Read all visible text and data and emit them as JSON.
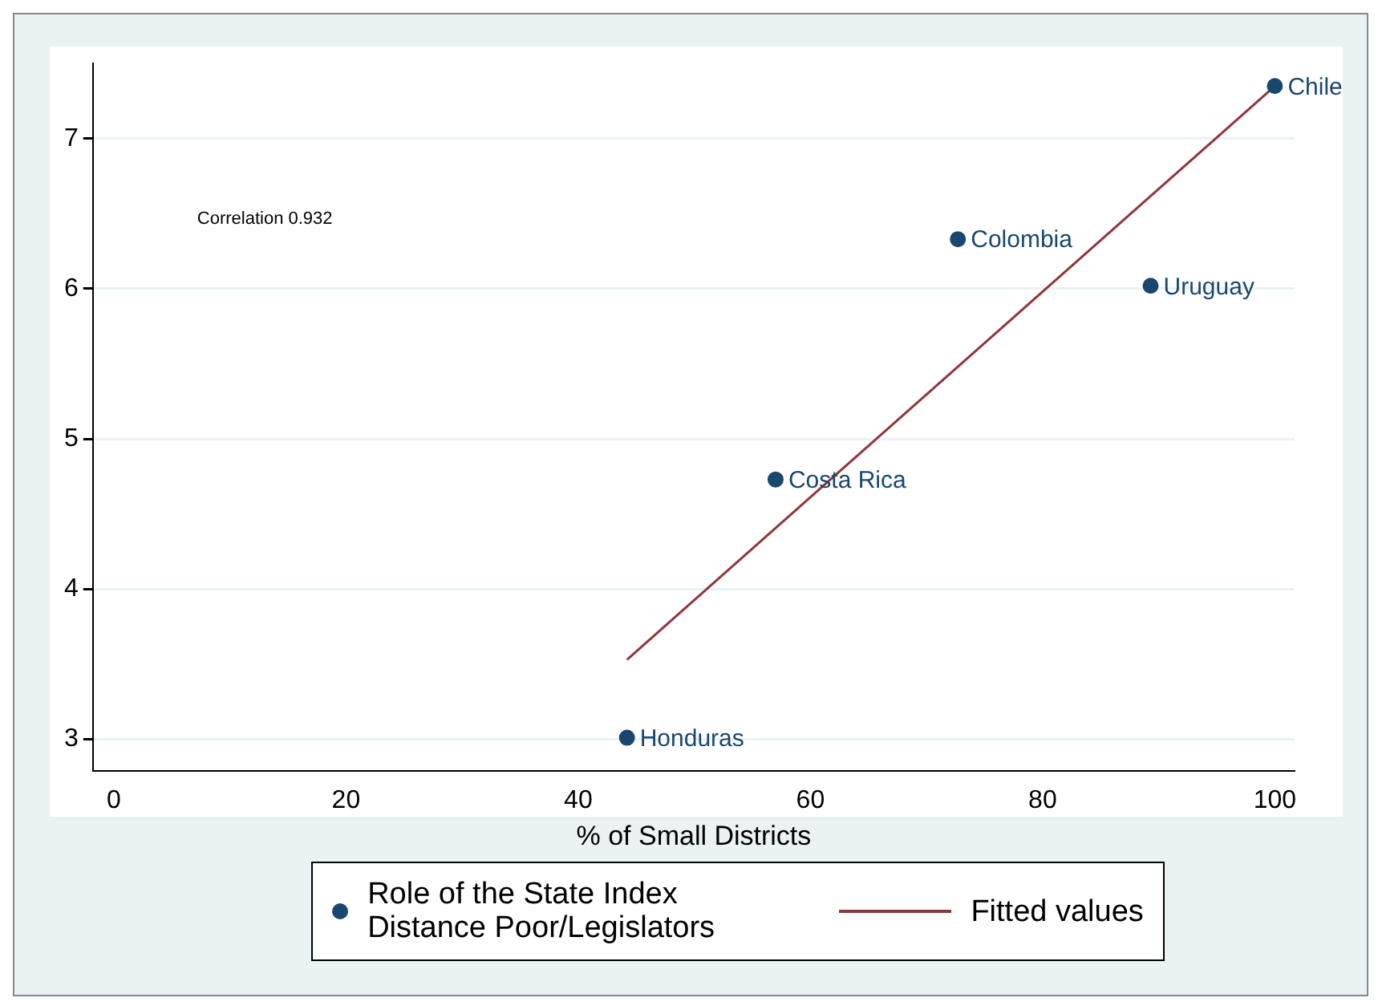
{
  "chart_data": {
    "type": "scatter",
    "xlabel": "% of Small Districts",
    "xlim": [
      -1.8,
      101.7
    ],
    "xticks": [
      0,
      20,
      40,
      60,
      80,
      100
    ],
    "ylim": [
      2.79,
      7.5
    ],
    "yticks": [
      3,
      4,
      5,
      6,
      7
    ],
    "grid": "y",
    "legend": "bottom",
    "marker": "circle",
    "series": [
      {
        "name": "Role of the State Index Distance Poor/Legislators",
        "color": "#1a476f",
        "x": [
          100,
          72.7,
          89.3,
          57.0,
          44.2
        ],
        "values": [
          7.35,
          6.33,
          6.02,
          4.73,
          3.01
        ]
      },
      {
        "name": "Fitted values",
        "type": "line",
        "color": "#90353b",
        "x": [
          44.2,
          100
        ],
        "values": [
          3.53,
          7.35
        ],
        "marker": "none"
      }
    ],
    "annotations": [
      "Correlation 0.932",
      {
        "text": "Chile",
        "x": 100,
        "y": 7.35
      },
      {
        "text": "Colombia",
        "x": 72.7,
        "y": 6.33
      },
      {
        "text": "Uruguay",
        "x": 89.3,
        "y": 6.02
      },
      {
        "text": "Costa Rica",
        "x": 57.0,
        "y": 4.73
      },
      {
        "text": "Honduras",
        "x": 44.2,
        "y": 3.01
      }
    ]
  }
}
